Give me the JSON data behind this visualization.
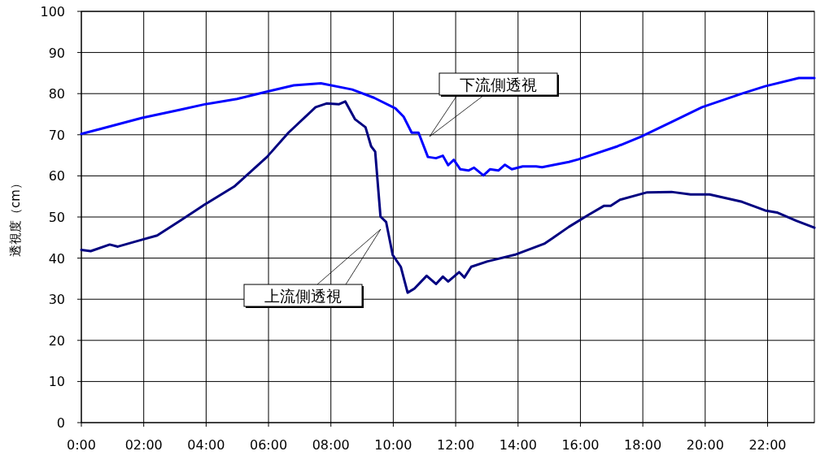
{
  "chart_data": {
    "type": "line",
    "ylabel": "透視度（cm）",
    "xlim": [
      0,
      23.5
    ],
    "ylim": [
      0,
      100
    ],
    "xticks": [
      {
        "value": 0,
        "label": "0:00"
      },
      {
        "value": 2,
        "label": "02:00"
      },
      {
        "value": 4,
        "label": "04:00"
      },
      {
        "value": 6,
        "label": "06:00"
      },
      {
        "value": 8,
        "label": "08:00"
      },
      {
        "value": 10,
        "label": "10:00"
      },
      {
        "value": 12,
        "label": "12:00"
      },
      {
        "value": 14,
        "label": "14:00"
      },
      {
        "value": 16,
        "label": "16:00"
      },
      {
        "value": 18,
        "label": "18:00"
      },
      {
        "value": 20,
        "label": "20:00"
      },
      {
        "value": 22,
        "label": "22:00"
      }
    ],
    "yticks": [
      0,
      10,
      20,
      30,
      40,
      50,
      60,
      70,
      80,
      90,
      100
    ],
    "grid": true,
    "marker": "none",
    "line_style": "solid",
    "series": [
      {
        "color": "#0000ff",
        "x": [
          0,
          0.65,
          1.95,
          3.17,
          3.95,
          4.99,
          5.95,
          6.81,
          7.68,
          8.68,
          9.38,
          10.07,
          10.33,
          10.59,
          10.81,
          11.11,
          11.37,
          11.59,
          11.76,
          11.94,
          12.15,
          12.41,
          12.59,
          12.89,
          13.1,
          13.37,
          13.58,
          13.8,
          14.15,
          14.58,
          14.77,
          15.1,
          15.63,
          15.93,
          17.19,
          17.93,
          18.92,
          19.9,
          21.18,
          21.92,
          23,
          23.5
        ],
        "values": [
          70.2,
          71.5,
          74.1,
          76.1,
          77.4,
          78.7,
          80.5,
          82,
          82.5,
          81,
          79,
          76.4,
          74.4,
          70.5,
          70.5,
          64.6,
          64.3,
          64.9,
          62.6,
          63.9,
          61.6,
          61.3,
          62,
          60.1,
          61.6,
          61.3,
          62.7,
          61.6,
          62.3,
          62.3,
          62.1,
          62.6,
          63.4,
          64,
          67.2,
          69.5,
          73.1,
          76.7,
          80,
          81.8,
          83.8,
          83.8
        ]
      },
      {
        "color": "#000080",
        "x": [
          0,
          0.3,
          0.91,
          1.17,
          1.95,
          2.43,
          3.17,
          3.95,
          4.9,
          5.95,
          6.64,
          7.51,
          7.86,
          8.25,
          8.46,
          8.77,
          9.11,
          9.29,
          9.42,
          9.59,
          9.77,
          9.98,
          10.24,
          10.46,
          10.68,
          11.07,
          11.37,
          11.59,
          11.76,
          12.11,
          12.28,
          12.5,
          13.02,
          13.89,
          14.84,
          15.1,
          15.63,
          16.23,
          16.75,
          16.97,
          17.27,
          18.14,
          18.92,
          19.53,
          20.14,
          21.18,
          21.92,
          22.3,
          22.92,
          23.5
        ],
        "values": [
          42,
          41.7,
          43.3,
          42.8,
          44.5,
          45.5,
          49.1,
          53,
          57.4,
          64.6,
          70.5,
          76.7,
          77.6,
          77.4,
          78.1,
          73.8,
          71.8,
          67.2,
          65.9,
          50.1,
          48.8,
          40.8,
          37.9,
          31.6,
          32.6,
          35.7,
          33.7,
          35.5,
          34.3,
          36.6,
          35.3,
          37.9,
          39.2,
          40.8,
          43.5,
          44.8,
          47.6,
          50.4,
          52.7,
          52.7,
          54.2,
          56,
          56.1,
          55.5,
          55.5,
          53.7,
          51.6,
          51.1,
          49.1,
          47.4
        ]
      }
    ],
    "annotations": [
      "下流側透視",
      "上流側透視"
    ]
  }
}
